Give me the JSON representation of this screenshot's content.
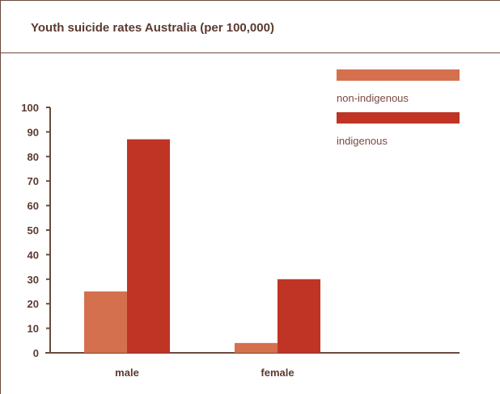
{
  "chart_data": {
    "type": "bar",
    "title": "Youth suicide rates Australia (per 100,000)",
    "xlabel": "",
    "ylabel": "",
    "categories": [
      "male",
      "female"
    ],
    "ylim": [
      0,
      100
    ],
    "yticks": [
      "0",
      "10",
      "20",
      "30",
      "40",
      "50",
      "60",
      "70",
      "80",
      "90",
      "100"
    ],
    "series": [
      {
        "name": "non-indigenous",
        "color": "#d4704e",
        "values": [
          25,
          4
        ]
      },
      {
        "name": "indigenous",
        "color": "#bf3425",
        "values": [
          87,
          30
        ]
      }
    ],
    "legend_position": "top-right",
    "grid": false
  }
}
